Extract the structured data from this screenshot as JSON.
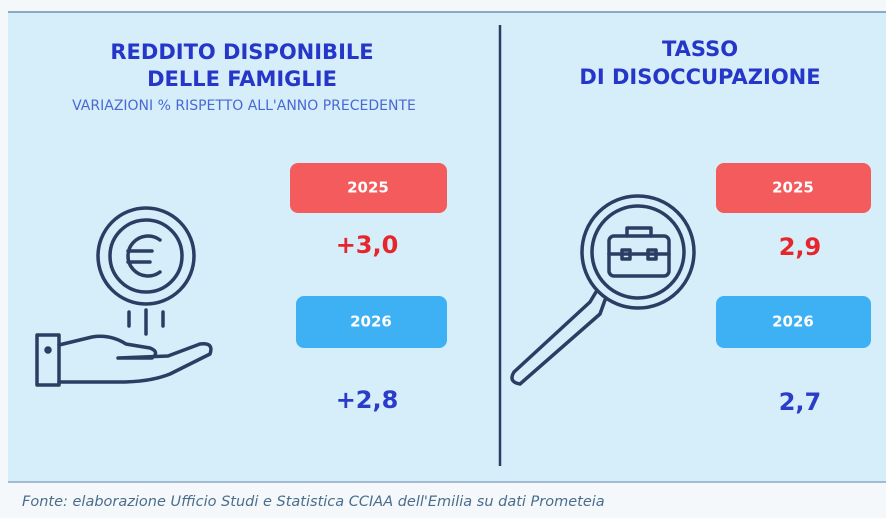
{
  "panels": [
    {
      "title_lines": [
        "REDDITO DISPONIBILE",
        "DELLE FAMIGLIE"
      ],
      "subtitle": "VARIAZIONI % RISPETTO ALL'ANNO PRECEDENTE",
      "items": [
        {
          "year": "2025",
          "value": "+3,0"
        },
        {
          "year": "2026",
          "value": "+2,8"
        }
      ]
    },
    {
      "title_lines": [
        "TASSO",
        "DI DISOCCUPAZIONE"
      ],
      "items": [
        {
          "year": "2025",
          "value": "2,9"
        },
        {
          "year": "2026",
          "value": "2,7"
        }
      ]
    }
  ],
  "footer": {
    "source": "Fonte: elaborazione Ufficio Studi e Statistica CCIAA dell'Emilia su dati Prometeia"
  }
}
